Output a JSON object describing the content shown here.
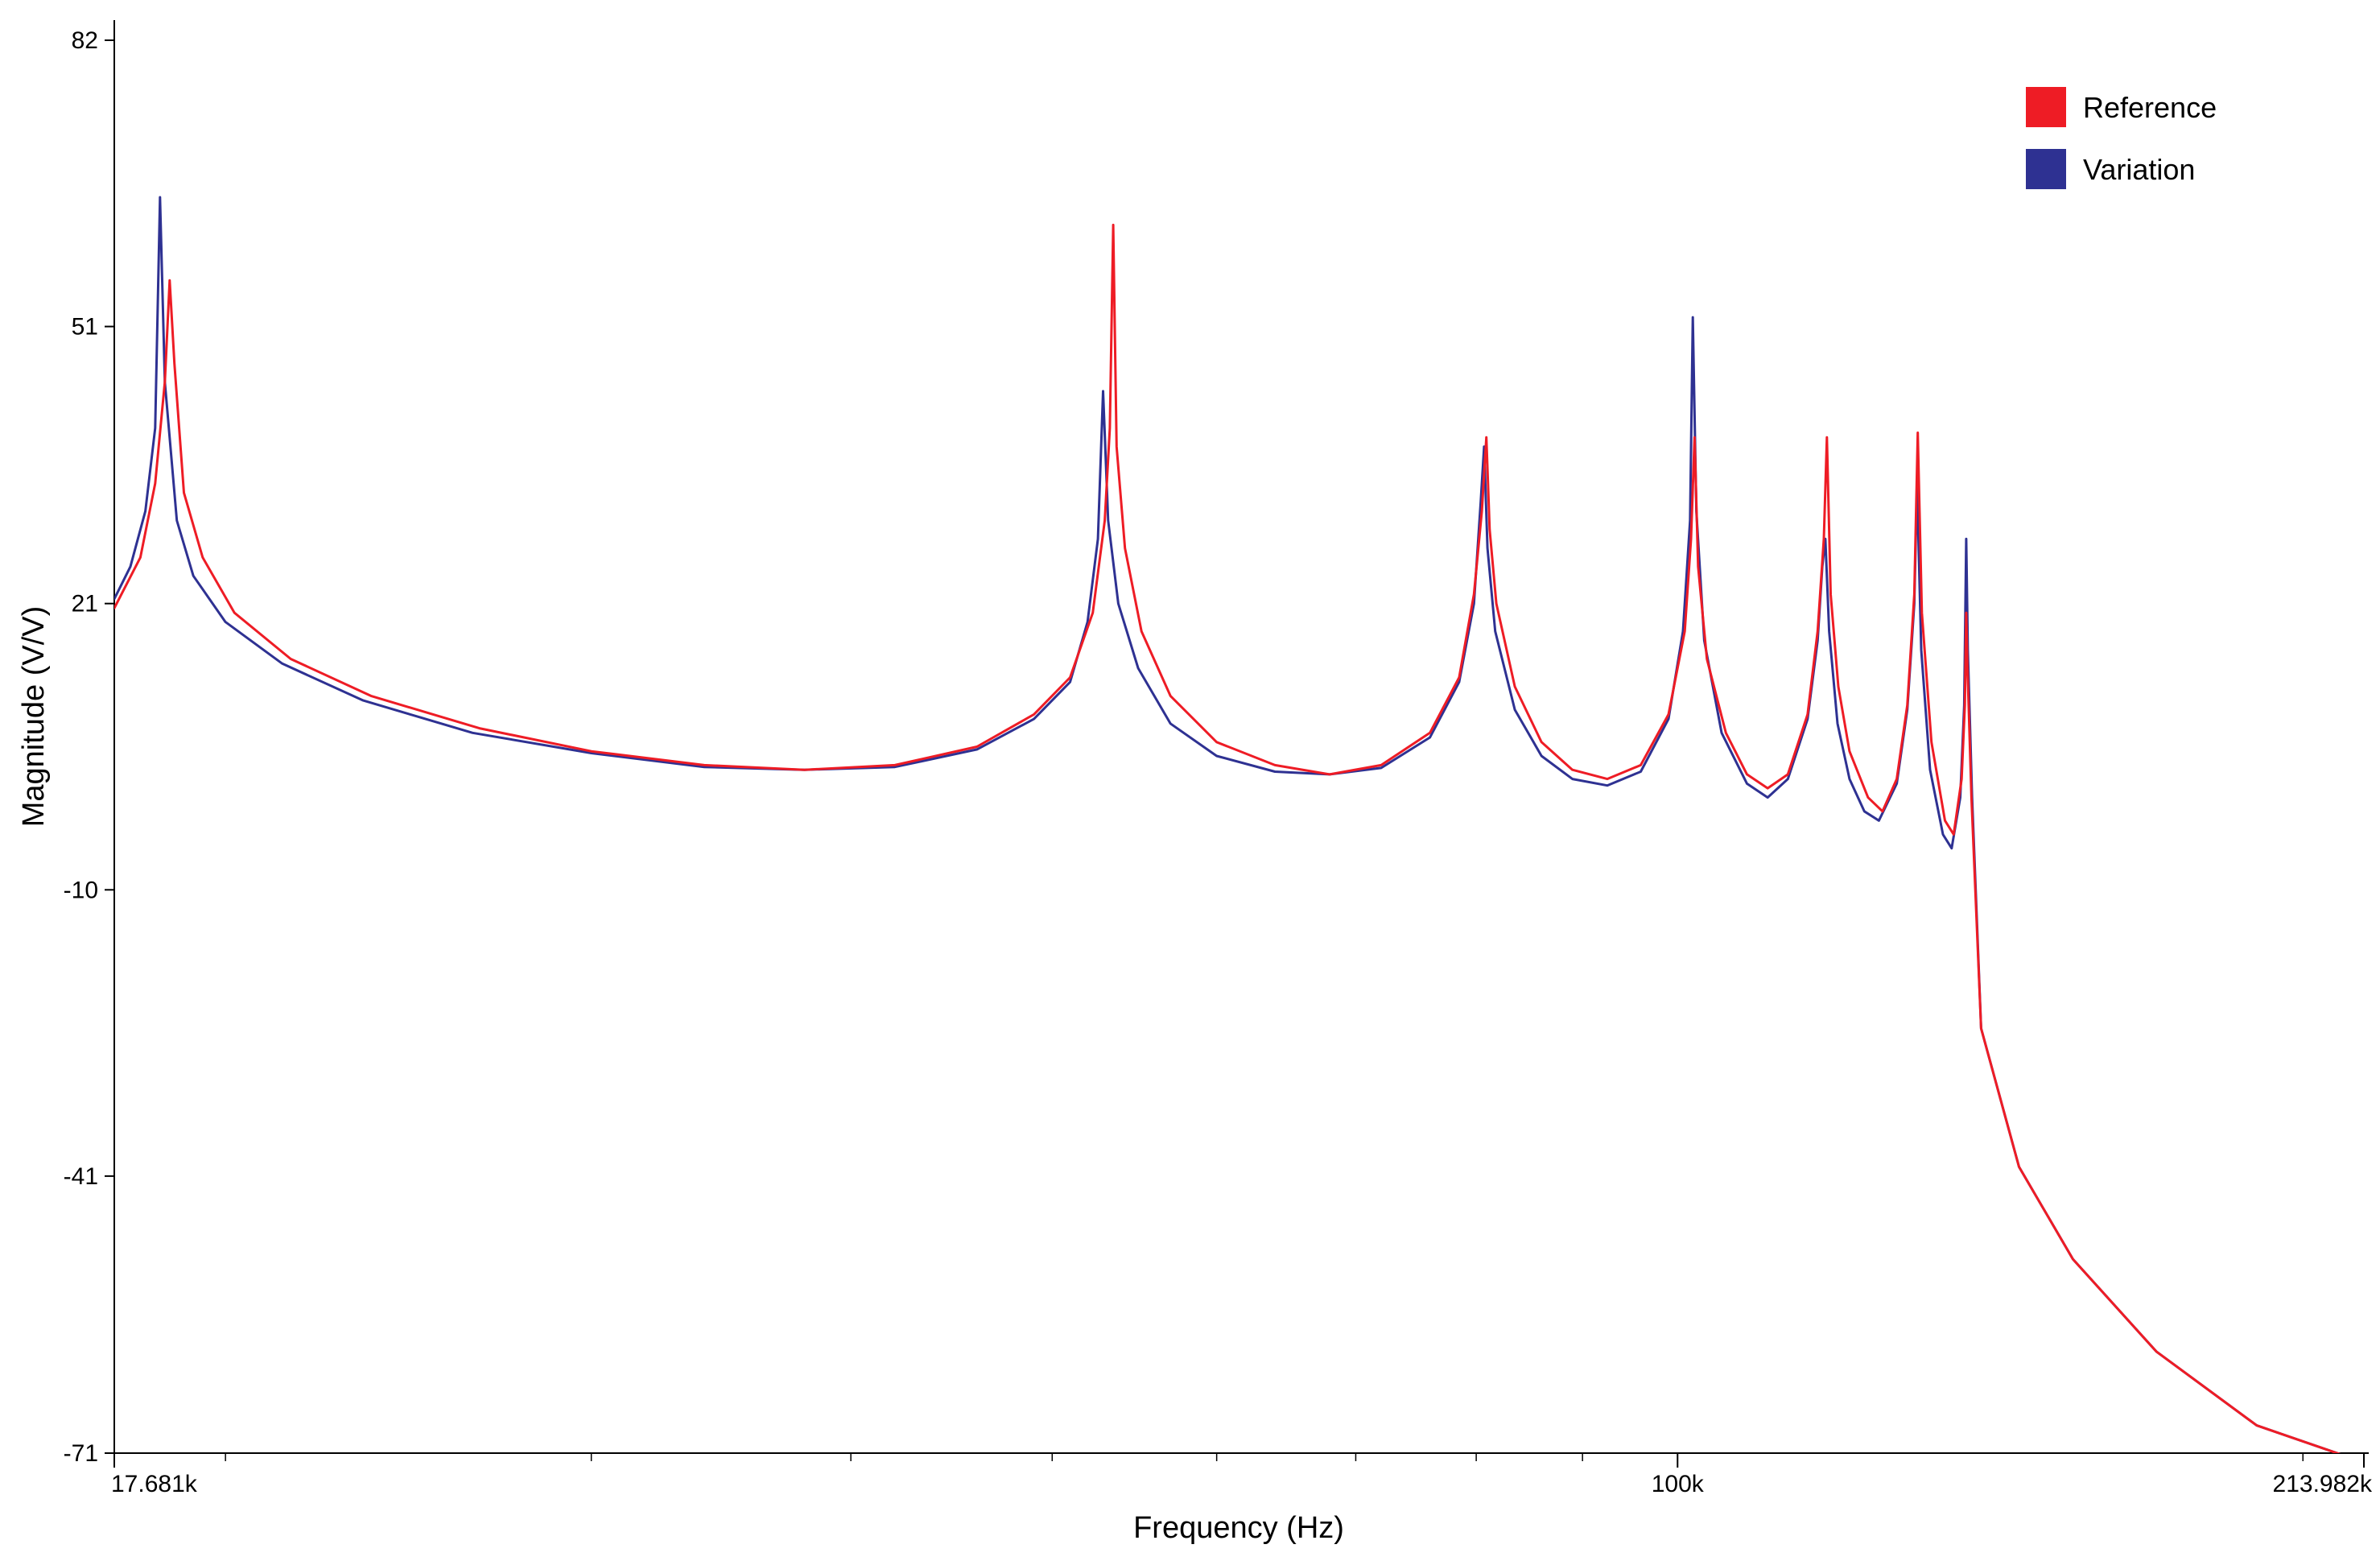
{
  "chart_data": {
    "type": "line",
    "title": "",
    "xlabel": "Frequency (Hz)",
    "ylabel": "Magnitude (V/V)",
    "x_scale": "log",
    "xlim": [
      17681,
      213982
    ],
    "ylim": [
      -71,
      82
    ],
    "x_tick_labels": [
      {
        "value": 17681,
        "label": "17.681k"
      },
      {
        "value": 100000,
        "label": "100k"
      },
      {
        "value": 213982,
        "label": "213.982k"
      }
    ],
    "y_tick_labels": [
      {
        "value": 82,
        "label": "82"
      },
      {
        "value": 51,
        "label": "51"
      },
      {
        "value": 21,
        "label": "21"
      },
      {
        "value": -10,
        "label": "-10"
      },
      {
        "value": -41,
        "label": "-41"
      },
      {
        "value": -71,
        "label": "-71"
      }
    ],
    "legend_position": "top-right",
    "series": [
      {
        "name": "Reference",
        "color": "#ee1c25",
        "points": [
          [
            17681,
            20.5
          ],
          [
            18200,
            26
          ],
          [
            18500,
            34
          ],
          [
            18700,
            45
          ],
          [
            18800,
            56
          ],
          [
            18900,
            47
          ],
          [
            19100,
            33
          ],
          [
            19500,
            26
          ],
          [
            20200,
            20
          ],
          [
            21500,
            15
          ],
          [
            23500,
            11
          ],
          [
            26500,
            7.5
          ],
          [
            30000,
            5
          ],
          [
            34000,
            3.5
          ],
          [
            38000,
            3
          ],
          [
            42000,
            3.5
          ],
          [
            46000,
            5.5
          ],
          [
            49000,
            9
          ],
          [
            51000,
            13
          ],
          [
            52300,
            20
          ],
          [
            53000,
            30
          ],
          [
            53300,
            40
          ],
          [
            53500,
            62
          ],
          [
            53700,
            38
          ],
          [
            54200,
            27
          ],
          [
            55200,
            18
          ],
          [
            57000,
            11
          ],
          [
            60000,
            6
          ],
          [
            64000,
            3.5
          ],
          [
            68000,
            2.5
          ],
          [
            72000,
            3.5
          ],
          [
            76000,
            7
          ],
          [
            78500,
            13
          ],
          [
            79800,
            22
          ],
          [
            80500,
            31
          ],
          [
            80900,
            39
          ],
          [
            81200,
            29
          ],
          [
            81800,
            21
          ],
          [
            83500,
            12
          ],
          [
            86000,
            6
          ],
          [
            89000,
            3
          ],
          [
            92500,
            2
          ],
          [
            96000,
            3.5
          ],
          [
            99000,
            9
          ],
          [
            100800,
            18
          ],
          [
            101500,
            28
          ],
          [
            101900,
            39
          ],
          [
            102300,
            25
          ],
          [
            103300,
            15
          ],
          [
            105500,
            7
          ],
          [
            108000,
            2.5
          ],
          [
            110500,
            1
          ],
          [
            113000,
            2.5
          ],
          [
            115500,
            9
          ],
          [
            116800,
            18
          ],
          [
            117600,
            28
          ],
          [
            118000,
            39
          ],
          [
            118500,
            22
          ],
          [
            119500,
            12
          ],
          [
            121000,
            5
          ],
          [
            123500,
            0
          ],
          [
            125500,
            -1.5
          ],
          [
            127500,
            2
          ],
          [
            129000,
            10
          ],
          [
            130000,
            22
          ],
          [
            130500,
            39.5
          ],
          [
            131100,
            20
          ],
          [
            132500,
            6
          ],
          [
            134500,
            -2.5
          ],
          [
            135800,
            -4
          ],
          [
            137000,
            2
          ],
          [
            137500,
            10
          ],
          [
            137700,
            20
          ],
          [
            137900,
            14
          ],
          [
            138500,
            0
          ],
          [
            140000,
            -25
          ],
          [
            146000,
            -40
          ],
          [
            155000,
            -50
          ],
          [
            170000,
            -60
          ],
          [
            190000,
            -68
          ],
          [
            213982,
            -72
          ]
        ]
      },
      {
        "name": "Variation",
        "color": "#2e3192",
        "points": [
          [
            17681,
            21.5
          ],
          [
            18000,
            25
          ],
          [
            18300,
            31
          ],
          [
            18500,
            40
          ],
          [
            18600,
            65
          ],
          [
            18700,
            45
          ],
          [
            18950,
            30
          ],
          [
            19300,
            24
          ],
          [
            20000,
            19
          ],
          [
            21300,
            14.5
          ],
          [
            23300,
            10.5
          ],
          [
            26300,
            7
          ],
          [
            30000,
            4.8
          ],
          [
            34000,
            3.3
          ],
          [
            38000,
            3
          ],
          [
            42000,
            3.3
          ],
          [
            46000,
            5.2
          ],
          [
            49000,
            8.5
          ],
          [
            51000,
            12.5
          ],
          [
            52000,
            19
          ],
          [
            52600,
            28
          ],
          [
            52900,
            44
          ],
          [
            53200,
            30
          ],
          [
            53800,
            21
          ],
          [
            55000,
            14
          ],
          [
            57000,
            8
          ],
          [
            60000,
            4.5
          ],
          [
            64000,
            2.8
          ],
          [
            68000,
            2.5
          ],
          [
            72000,
            3.2
          ],
          [
            76000,
            6.5
          ],
          [
            78500,
            12.5
          ],
          [
            79800,
            21
          ],
          [
            80400,
            32
          ],
          [
            80700,
            38
          ],
          [
            81000,
            27
          ],
          [
            81700,
            18
          ],
          [
            83500,
            9.5
          ],
          [
            86000,
            4.5
          ],
          [
            89000,
            2
          ],
          [
            92500,
            1.3
          ],
          [
            96000,
            2.8
          ],
          [
            99000,
            8.5
          ],
          [
            100600,
            18
          ],
          [
            101400,
            30
          ],
          [
            101700,
            52
          ],
          [
            102100,
            31
          ],
          [
            103000,
            17
          ],
          [
            105000,
            7
          ],
          [
            108000,
            1.5
          ],
          [
            110500,
            0
          ],
          [
            113000,
            2
          ],
          [
            115500,
            8.5
          ],
          [
            116800,
            17
          ],
          [
            117400,
            25
          ],
          [
            117800,
            28
          ],
          [
            118300,
            18
          ],
          [
            119400,
            8
          ],
          [
            121000,
            2
          ],
          [
            123000,
            -1.5
          ],
          [
            125000,
            -2.5
          ],
          [
            127500,
            1.5
          ],
          [
            129000,
            9.5
          ],
          [
            130000,
            21
          ],
          [
            130400,
            34
          ],
          [
            131000,
            16
          ],
          [
            132300,
            3
          ],
          [
            134200,
            -4
          ],
          [
            135500,
            -5.5
          ],
          [
            136800,
            0
          ],
          [
            137400,
            10
          ],
          [
            137700,
            28
          ],
          [
            137950,
            16
          ],
          [
            138600,
            0
          ],
          [
            140000,
            -25
          ],
          [
            146000,
            -40
          ],
          [
            155000,
            -50
          ],
          [
            170000,
            -60
          ],
          [
            190000,
            -68
          ],
          [
            213982,
            -72
          ]
        ]
      }
    ]
  }
}
